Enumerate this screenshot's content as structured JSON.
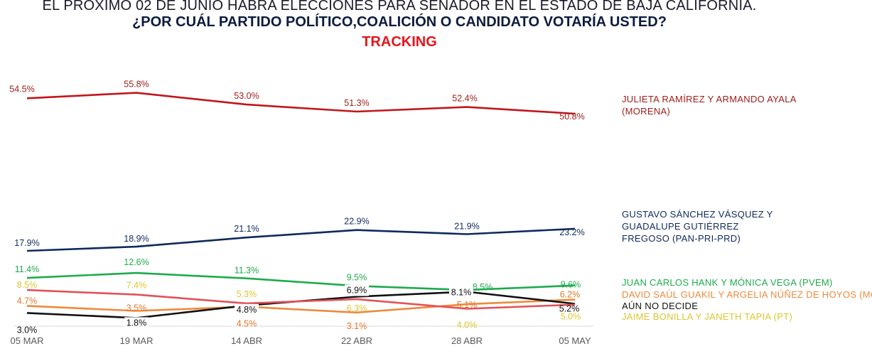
{
  "header": {
    "line1": "EL PROXIMO 02 DE JUNIO HABRA ELECCIONES PARA SENADOR EN EL ESTADO DE BAJA CALIFORNIA.",
    "line2": "¿POR CUÁL PARTIDO POLÍTICO,COALICIÓN  O CANDIDATO  VOTARÍA USTED?",
    "line3": "TRACKING"
  },
  "chart_data": {
    "type": "line",
    "title": "TRACKING",
    "categories": [
      "05 MAR",
      "19 MAR",
      "14 ABR",
      "22 ABR",
      "28 ABR",
      "05 MAY"
    ],
    "ylim": [
      0,
      60
    ],
    "grid": false,
    "legend": "right",
    "series": [
      {
        "name": "JULIETA RAMÍREZ Y ARMANDO AYALA (MORENA)",
        "legend_lines": [
          "JULIETA RAMÍREZ Y ARMANDO AYALA",
          "(MORENA)"
        ],
        "color": "#c0171c",
        "label_color": "#9e1b17",
        "values": [
          54.5,
          55.8,
          53.0,
          51.3,
          52.4,
          50.8
        ],
        "labels": [
          "54.5%",
          "55.8%",
          "53.0%",
          "51.3%",
          "52.4%",
          "50.8%"
        ]
      },
      {
        "name": "GUSTAVO SÁNCHEZ VÁSQUEZ Y GUADALUPE GUTIÉRREZ FREGOSO (PAN-PRI-PRD)",
        "legend_lines": [
          "GUSTAVO SÁNCHEZ VÁSQUEZ  Y",
          "GUADALUPE GUTIÉRREZ",
          "FREGOSO (PAN-PRI-PRD)"
        ],
        "color": "#0f2a5c",
        "label_color": "#0f2a5c",
        "values": [
          17.9,
          18.9,
          21.1,
          22.9,
          21.9,
          23.2
        ],
        "labels": [
          "17.9%",
          "18.9%",
          "21.1%",
          "22.9%",
          "21.9%",
          "23.2%"
        ]
      },
      {
        "name": "JUAN CARLOS HANK Y MÓNICA VEGA (PVEM)",
        "legend_lines": [
          "JUAN CARLOS HANK Y MÓNICA VEGA (PVEM)"
        ],
        "color": "#1eab4d",
        "label_color": "#1eab4d",
        "values": [
          11.4,
          12.6,
          11.3,
          9.5,
          8.5,
          9.6
        ],
        "labels": [
          "11.4%",
          "12.6%",
          "11.3%",
          "9.5%",
          "8.5%",
          "9.6%"
        ]
      },
      {
        "name": "DAVID SAÚL GUAKIL Y ARGELIA NÚÑEZ DE HOYOS (MC)",
        "legend_lines": [
          "DAVID SAÚL GUAKIL Y  ARGELIA NÚÑEZ DE HOYOS (MC)"
        ],
        "color": "#ee8a3b",
        "label_color": "#e27728",
        "values": [
          4.7,
          3.5,
          4.5,
          3.1,
          5.1,
          6.2
        ],
        "labels": [
          "4.7%",
          "3.5%",
          "4.5%",
          "3.1%",
          "5.1%",
          "6.2%"
        ]
      },
      {
        "name": "AÚN NO DECIDE",
        "legend_lines": [
          "AÚN NO DECIDE"
        ],
        "color": "#111111",
        "label_color": "#111111",
        "values": [
          3.0,
          1.8,
          4.8,
          6.9,
          8.1,
          5.2
        ],
        "labels": [
          "3.0%",
          "1.8%",
          "4.8%",
          "6.9%",
          "8.1%",
          "5.2%"
        ]
      },
      {
        "name": "JAIME BONILLA Y JANETH TAPIA (PT)",
        "legend_lines": [
          "JAIME BONILLA Y JANETH TAPIA (PT)"
        ],
        "color": "#e2525a",
        "label_color": "#ddc631",
        "values": [
          8.5,
          7.4,
          5.3,
          6.3,
          4.0,
          5.0
        ],
        "labels": [
          "8.5%",
          "7.4%",
          "5.3%",
          "6.3%",
          "4.0%",
          "5.0%"
        ]
      }
    ]
  }
}
